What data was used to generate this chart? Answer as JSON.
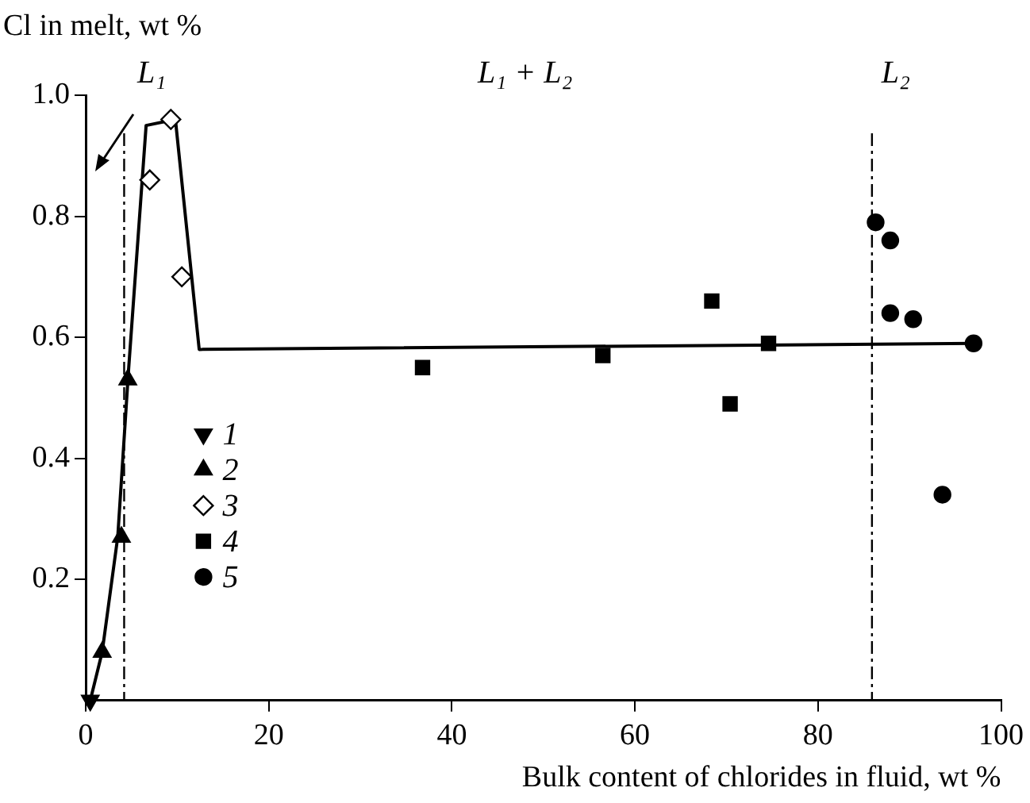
{
  "chart_data": {
    "type": "scatter",
    "xlabel": "Bulk content of chlorides in fluid, wt %",
    "ylabel": "Cl in melt, wt %",
    "xlim": [
      0,
      100
    ],
    "xticks": [
      0,
      20,
      40,
      60,
      80,
      100
    ],
    "ylim": [
      0,
      1
    ],
    "yticks": [
      {
        "value": 0.2,
        "label": "0.2"
      },
      {
        "value": 0.4,
        "label": "0.4"
      },
      {
        "value": 0.6,
        "label": "0.6"
      },
      {
        "value": 0.8,
        "label": "0.8"
      },
      {
        "value": 1,
        "label": "1.0"
      }
    ],
    "grid": false,
    "legend": "left",
    "series": [
      {
        "type": "line",
        "color": "#000000",
        "marker": "none",
        "line_style": "solid",
        "x": [
          0.5,
          1.8,
          3.5,
          4.7,
          6.6,
          9.8,
          12.4,
          97
        ],
        "values": [
          0,
          0.08,
          0.27,
          0.55,
          0.95,
          0.96,
          0.58,
          0.59
        ]
      },
      {
        "name": "1",
        "color": "#000000",
        "marker": "triangle-down",
        "x": [
          0.5
        ],
        "values": [
          0
        ]
      },
      {
        "name": "2",
        "color": "#000000",
        "marker": "triangle",
        "x": [
          1.8,
          3.9,
          4.6
        ],
        "values": [
          0.08,
          0.27,
          0.53
        ]
      },
      {
        "name": "3",
        "color": "#000000",
        "marker": "diamond",
        "x": [
          7.0,
          9.3,
          10.5
        ],
        "values": [
          0.86,
          0.96,
          0.7
        ]
      },
      {
        "name": "4",
        "color": "#000000",
        "marker": "square",
        "x": [
          36.8,
          56.5,
          68.4,
          70.4,
          74.6
        ],
        "values": [
          0.55,
          0.57,
          0.66,
          0.49,
          0.59
        ]
      },
      {
        "name": "5",
        "color": "#000000",
        "marker": "circle",
        "x": [
          86.3,
          87.9,
          87.9,
          90.4,
          93.6,
          97.0
        ],
        "values": [
          0.79,
          0.76,
          0.64,
          0.63,
          0.34,
          0.59
        ]
      }
    ],
    "ref_lines": [
      {
        "axis": "x",
        "value": 4.2,
        "line_style": "dashdot",
        "color": "#000000"
      },
      {
        "axis": "x",
        "value": 85.9,
        "line_style": "dashdot",
        "color": "#000000"
      }
    ],
    "annotations": [
      "L₁",
      "L₁ + L₂",
      "L₂"
    ]
  }
}
